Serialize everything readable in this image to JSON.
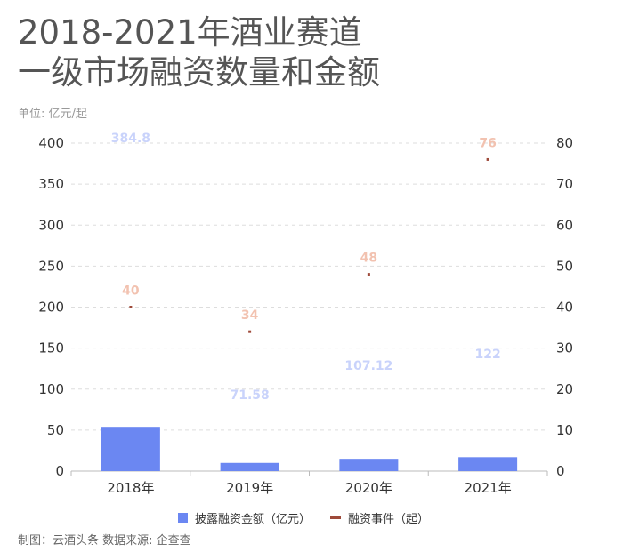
{
  "header": {
    "title_line1": "2018-2021年酒业赛道",
    "title_line2": "一级市场融资数量和金额",
    "unit": "单位: 亿元/起"
  },
  "footer": {
    "source": "制图：云酒头条 数据来源: 企查查"
  },
  "colors": {
    "bar": "#6b87f2",
    "bar_label": "#c9d3fb",
    "line_marker": "#9e4a3a",
    "line_label": "#f2c2b0",
    "grid": "#dddddd",
    "axis": "#bbbbbb"
  },
  "chart_data": {
    "type": "bar",
    "categories": [
      "2018年",
      "2019年",
      "2020年",
      "2021年"
    ],
    "series": [
      {
        "name": "披露融资金额（亿元）",
        "type": "bar",
        "axis": "left",
        "values": [
          384.8,
          71.58,
          107.12,
          122
        ],
        "labels": [
          "384.8",
          "71.58",
          "107.12",
          "122"
        ]
      },
      {
        "name": "融资事件（起）",
        "type": "line",
        "axis": "right",
        "values": [
          40,
          34,
          48,
          76
        ],
        "labels": [
          "40",
          "34",
          "48",
          "76"
        ]
      }
    ],
    "ylim_left": [
      0,
      400
    ],
    "yticks_left": [
      "0",
      "50",
      "100",
      "150",
      "200",
      "250",
      "300",
      "350",
      "400"
    ],
    "ylim_right": [
      0,
      80
    ],
    "yticks_right": [
      "0",
      "10",
      "20",
      "30",
      "40",
      "50",
      "60",
      "70",
      "80"
    ],
    "bars_rendered_values": [
      54,
      10,
      15,
      17
    ],
    "grid": true,
    "legend": "bottom-center"
  }
}
